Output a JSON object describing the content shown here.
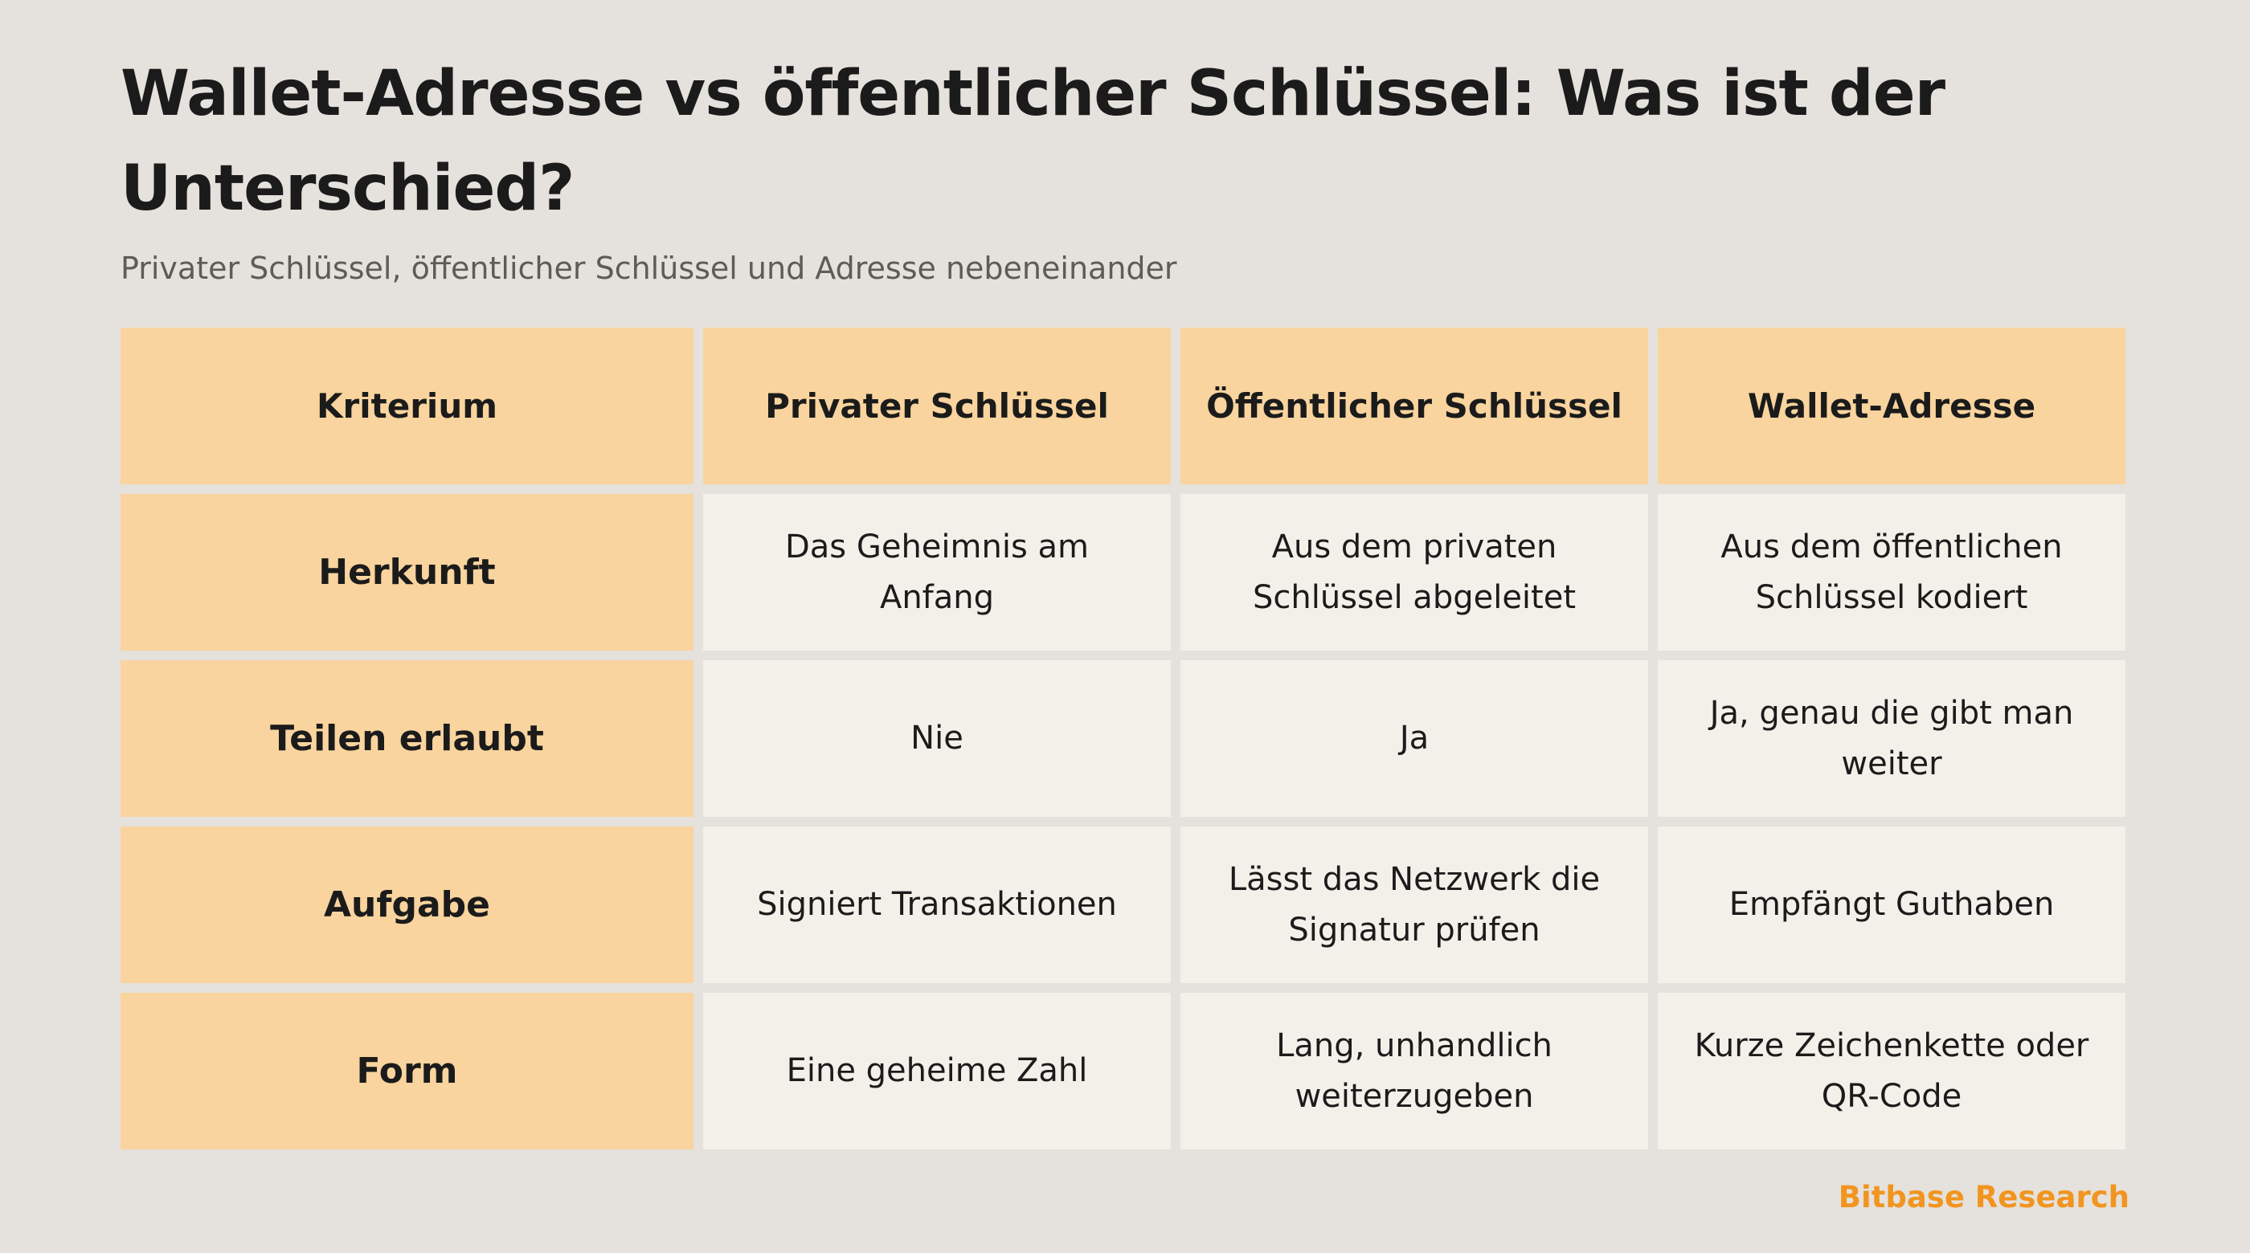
{
  "header": {
    "title": "Wallet-Adresse vs öffentlicher Schlüssel: Was ist der Unterschied?",
    "subtitle": "Privater Schlüssel, öffentlicher Schlüssel und Adresse nebeneinander"
  },
  "table": {
    "columns": [
      "Kriterium",
      "Privater Schlüssel",
      "Öffentlicher Schlüssel",
      "Wallet-Adresse"
    ],
    "rows": [
      {
        "label": "Herkunft",
        "cells": [
          "Das Geheimnis am Anfang",
          "Aus dem privaten Schlüssel abgeleitet",
          "Aus dem öffentlichen Schlüssel kodiert"
        ]
      },
      {
        "label": "Teilen erlaubt",
        "cells": [
          "Nie",
          "Ja",
          "Ja, genau die gibt man weiter"
        ]
      },
      {
        "label": "Aufgabe",
        "cells": [
          "Signiert Transaktionen",
          "Lässt das Netzwerk die Signatur prüfen",
          "Empfängt Guthaben"
        ]
      },
      {
        "label": "Form",
        "cells": [
          "Eine geheime Zahl",
          "Lang, unhandlich weiterzugeben",
          "Kurze Zeichenkette oder QR-Code"
        ]
      }
    ]
  },
  "footer": {
    "brand": "Bitbase Research"
  },
  "colors": {
    "background": "#e5e1dc",
    "header_cell": "#f9d49e",
    "body_cell": "#f3f0ea",
    "brand": "#f2951f",
    "text": "#1b1b1b",
    "subtitle": "#5e5b58"
  }
}
